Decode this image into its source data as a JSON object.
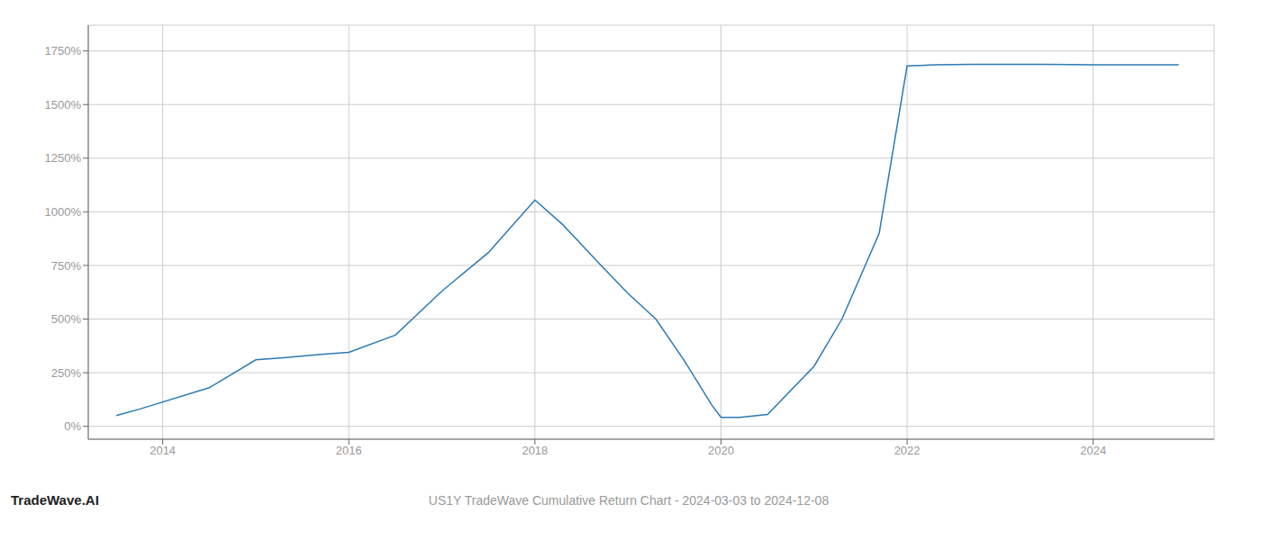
{
  "chart_data": {
    "type": "line",
    "title": "US1Y TradeWave Cumulative Return Chart - 2024-03-03 to 2024-12-08",
    "annotations": [
      "TradeWave.AI"
    ],
    "x": [
      2013.5,
      2013.75,
      2014.5,
      2015.0,
      2015.3,
      2015.7,
      2016.0,
      2016.5,
      2017.0,
      2017.5,
      2018.0,
      2018.3,
      2018.7,
      2019.0,
      2019.3,
      2019.6,
      2019.9,
      2020.0,
      2020.2,
      2020.5,
      2021.0,
      2021.3,
      2021.7,
      2022.0,
      2022.3,
      2022.7,
      2023.0,
      2023.5,
      2024.0,
      2024.5,
      2024.92
    ],
    "values": [
      50,
      80,
      180,
      310,
      320,
      335,
      345,
      425,
      630,
      810,
      1055,
      940,
      755,
      620,
      500,
      310,
      100,
      42,
      42,
      55,
      280,
      500,
      900,
      1680,
      1685,
      1688,
      1688,
      1688,
      1685,
      1685,
      1685
    ],
    "color": "#2a7ab5",
    "xlim": [
      2013.2,
      2025.3
    ],
    "xticks": [
      2014,
      2016,
      2018,
      2020,
      2022,
      2024
    ],
    "ylim": [
      -60,
      1870
    ],
    "yticks": [
      {
        "value": 0,
        "label": "0%"
      },
      {
        "value": 250,
        "label": "250%"
      },
      {
        "value": 500,
        "label": "500%"
      },
      {
        "value": 750,
        "label": "750%"
      },
      {
        "value": 1000,
        "label": "1000%"
      },
      {
        "value": 1250,
        "label": "1250%"
      },
      {
        "value": 1500,
        "label": "1500%"
      },
      {
        "value": 1750,
        "label": "1750%"
      }
    ],
    "grid": true
  }
}
